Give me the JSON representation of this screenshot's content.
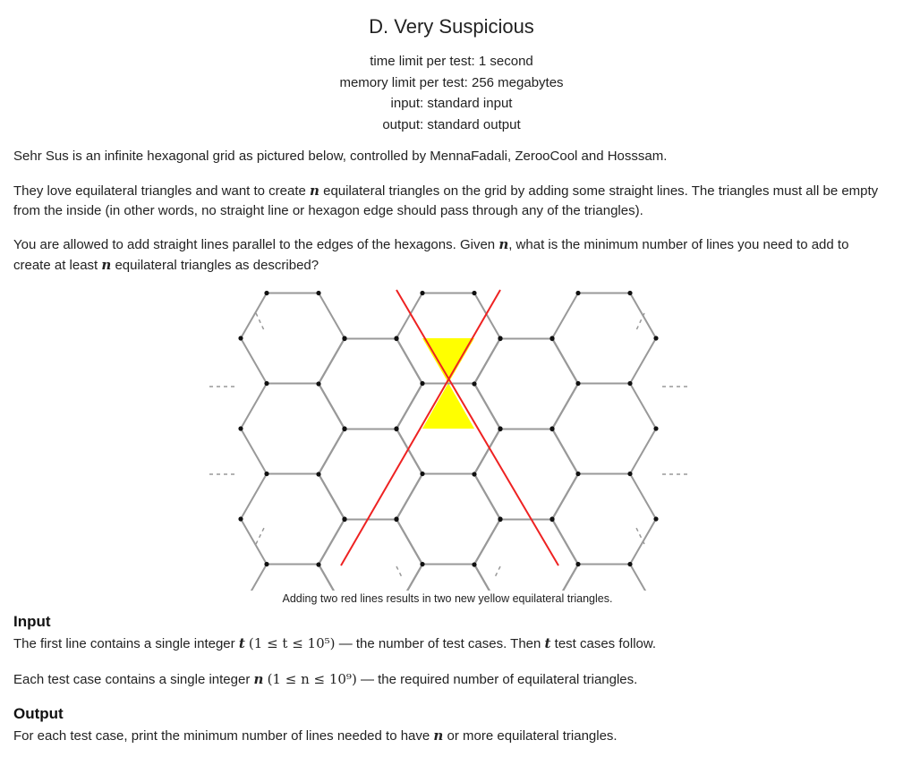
{
  "header": {
    "title": "D. Very Suspicious",
    "time_limit": "time limit per test: 1 second",
    "memory_limit": "memory limit per test: 256 megabytes",
    "input": "input: standard input",
    "output": "output: standard output"
  },
  "statement": {
    "p1": "Sehr Sus is an infinite hexagonal grid as pictured below, controlled by MennaFadali, ZerooCool and Hosssam.",
    "p2_before": "They love equilateral triangles and want to create",
    "p2_var": "n",
    "p2_after": "equilateral triangles on the grid by adding some straight lines. The triangles must all be empty from the inside (in other words, no straight line or hexagon edge should pass through any of the triangles).",
    "p3_before": "You are allowed to add straight lines parallel to the edges of the hexagons. Given",
    "p3_var": "n",
    "p3_mid": ", what is the minimum number of lines you need to add to create at least",
    "p3_var2": "n",
    "p3_after": "equilateral triangles as described?"
  },
  "figure": {
    "caption": "Adding two red lines results in two new yellow equilateral triangles.",
    "colors": {
      "grid": "#999999",
      "vertex": "#111111",
      "red_line": "#ee2222",
      "triangle": "#ffff00"
    }
  },
  "input": {
    "title": "Input",
    "line1_before": "The first line contains a single integer",
    "line1_var": "t",
    "line1_constraint": "(1 ≤ t ≤ 10⁵)",
    "line1_after": "— the number of test cases. Then",
    "line1_var2": "t",
    "line1_end": "test cases follow.",
    "line2_before": "Each test case contains a single integer",
    "line2_var": "n",
    "line2_constraint": "(1 ≤ n ≤ 10⁹)",
    "line2_after": "— the required number of equilateral triangles."
  },
  "output": {
    "title": "Output",
    "line_before": "For each test case, print the minimum number of lines needed to have",
    "line_var": "n",
    "line_after": "or more equilateral triangles."
  }
}
